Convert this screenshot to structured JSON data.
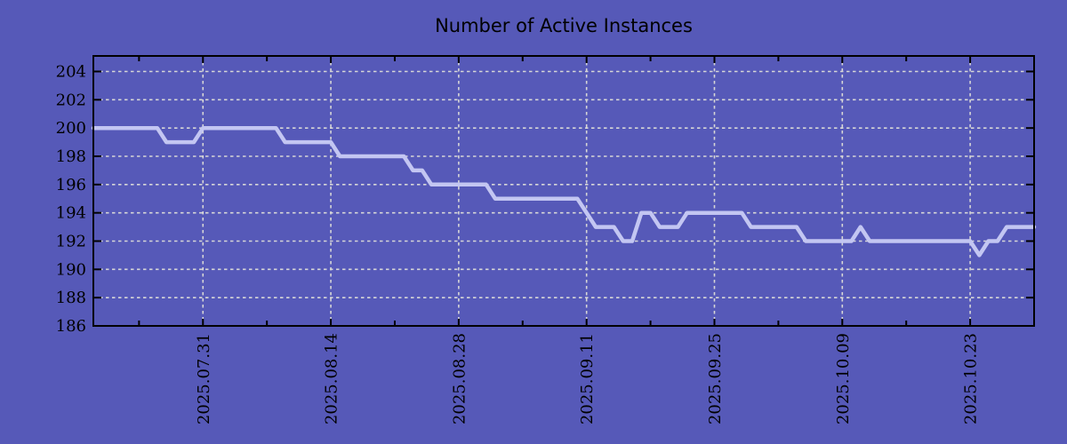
{
  "chart_data": {
    "type": "line",
    "title": "Number of Active Instances",
    "xlabel": "",
    "ylabel": "",
    "x_start": "2025-07-19",
    "x_end": "2025-10-30",
    "x_frequency": "daily",
    "values": [
      200,
      200,
      200,
      200,
      200,
      200,
      200,
      200,
      199,
      199,
      199,
      199,
      200,
      200,
      200,
      200,
      200,
      200,
      200,
      200,
      200,
      199,
      199,
      199,
      199,
      199,
      199,
      198,
      198,
      198,
      198,
      198,
      198,
      198,
      198,
      197,
      197,
      196,
      196,
      196,
      196,
      196,
      196,
      196,
      195,
      195,
      195,
      195,
      195,
      195,
      195,
      195,
      195,
      195,
      194,
      193,
      193,
      193,
      192,
      192,
      194,
      194,
      193,
      193,
      193,
      194,
      194,
      194,
      194,
      194,
      194,
      194,
      193,
      193,
      193,
      193,
      193,
      193,
      192,
      192,
      192,
      192,
      192,
      192,
      193,
      192,
      192,
      192,
      192,
      192,
      192,
      192,
      192,
      192,
      192,
      192,
      192,
      191,
      192,
      192,
      193,
      193,
      193,
      193
    ],
    "x_tick_labels": [
      "2025.07.31",
      "2025.08.14",
      "2025.08.28",
      "2025.09.11",
      "2025.09.25",
      "2025.10.09",
      "2025.10.23"
    ],
    "y_ticks": [
      186,
      188,
      190,
      192,
      194,
      196,
      198,
      200,
      202,
      204
    ],
    "ylim": [
      186,
      205.1
    ],
    "grid": "dashed",
    "legend": "none",
    "colors": {
      "background": "#5659b8",
      "line": "#c3c6f2",
      "grid": "#d6d6d6",
      "axis": "#000000",
      "text": "#000000"
    }
  }
}
